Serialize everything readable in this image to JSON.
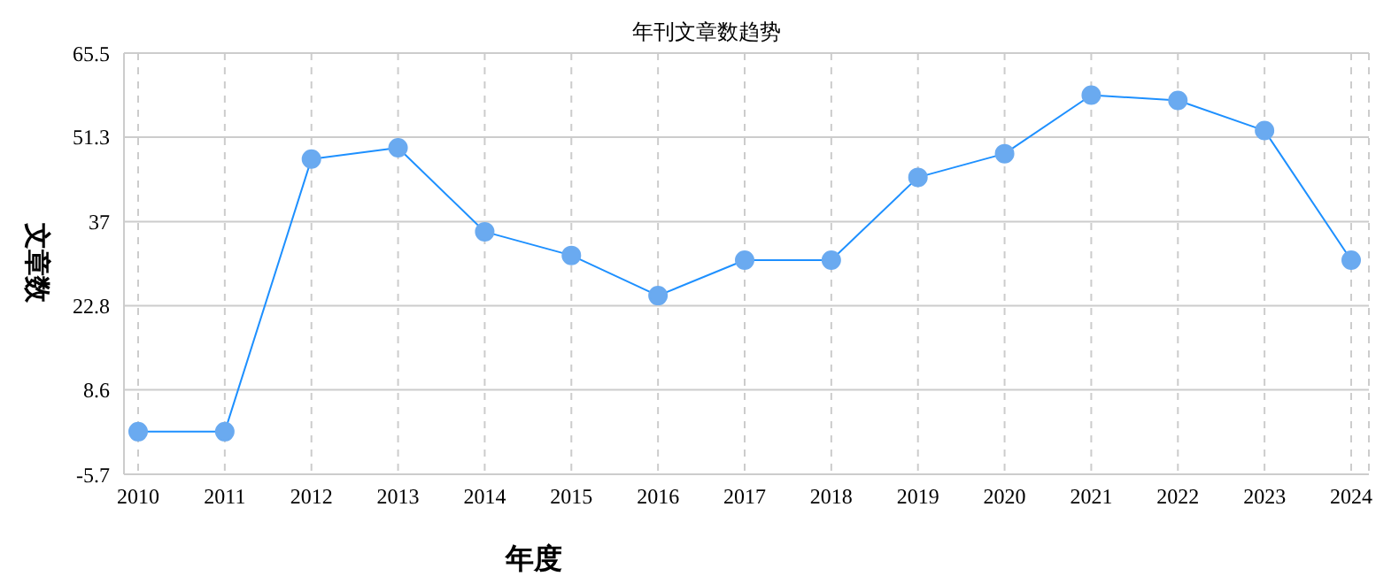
{
  "chart_data": {
    "type": "line",
    "title": "年刊文章数趋势",
    "xlabel": "年度",
    "ylabel": "文章数",
    "categories": [
      "2010",
      "2011",
      "2012",
      "2013",
      "2014",
      "2015",
      "2016",
      "2017",
      "2018",
      "2019",
      "2020",
      "2021",
      "2022",
      "2023",
      "2024"
    ],
    "series": [
      {
        "color": "#1e90ff",
        "values": [
          1.5,
          1.5,
          47.6,
          49.5,
          35.3,
          31.3,
          24.5,
          30.5,
          30.5,
          44.5,
          48.5,
          58.4,
          57.5,
          52.4,
          30.5
        ]
      }
    ],
    "ylim": [
      -5.7,
      65.5
    ],
    "yticks": [
      -5.7,
      8.6,
      22.8,
      37,
      51.3,
      65.5
    ],
    "grid": true,
    "marker": "circle",
    "line_style": "solid",
    "legend": false
  }
}
